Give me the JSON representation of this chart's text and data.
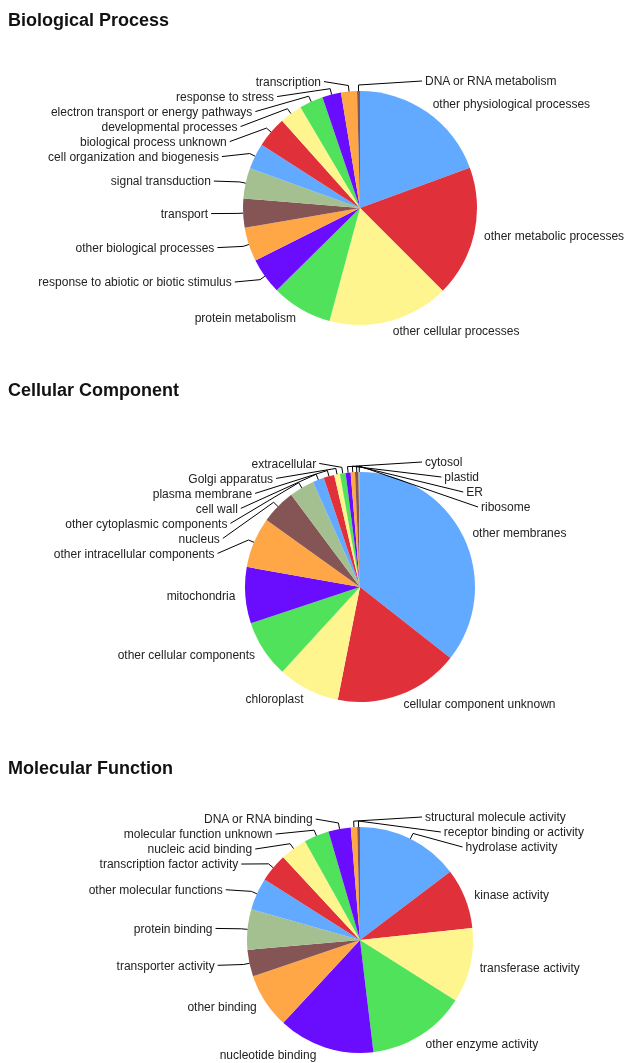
{
  "chart_data": [
    {
      "type": "pie",
      "title": "Biological Process",
      "categories": [
        "other physiological processes",
        "other metabolic processes",
        "other cellular processes",
        "protein metabolism",
        "response to abiotic or biotic stimulus",
        "other biological processes",
        "transport",
        "signal transduction",
        "cell organization and biogenesis",
        "biological process unknown",
        "developmental processes",
        "electron transport or energy pathways",
        "response to stress",
        "transcription",
        "DNA or RNA metabolism"
      ],
      "values": [
        19.4,
        18.1,
        16.7,
        8.4,
        5.0,
        4.7,
        4.0,
        4.2,
        3.6,
        4.3,
        3.1,
        3.3,
        2.6,
        2.2,
        0.4
      ],
      "colors": [
        "#62aaff",
        "#e0303a",
        "#fff58f",
        "#50e25a",
        "#6a0dff",
        "#ffa646",
        "#855555",
        "#a4bf90",
        "#62aaff",
        "#e0303a",
        "#fff58f",
        "#50e25a",
        "#6a0dff",
        "#ffa646",
        "#855555"
      ]
    },
    {
      "type": "pie",
      "title": "Cellular Component",
      "categories": [
        "other membranes",
        "cellular component unknown",
        "chloroplast",
        "other cellular components",
        "mitochondria",
        "other intracellular components",
        "nucleus",
        "other cytoplasmic components",
        "cell wall",
        "plasma membrane",
        "Golgi apparatus",
        "extracellular",
        "cytosol",
        "plastid",
        "ER",
        "ribosome"
      ],
      "values": [
        35.6,
        17.5,
        8.7,
        8.1,
        7.9,
        7.1,
        4.9,
        3.5,
        1.6,
        1.5,
        0.8,
        0.8,
        0.7,
        0.6,
        0.5,
        0.2
      ],
      "colors": [
        "#62aaff",
        "#e0303a",
        "#fff58f",
        "#50e25a",
        "#6a0dff",
        "#ffa646",
        "#855555",
        "#a4bf90",
        "#62aaff",
        "#e0303a",
        "#fff58f",
        "#50e25a",
        "#6a0dff",
        "#ffa646",
        "#855555",
        "#a4bf90"
      ]
    },
    {
      "type": "pie",
      "title": "Molecular Function",
      "categories": [
        "hydrolase activity",
        "kinase activity",
        "transferase activity",
        "other enzyme activity",
        "nucleotide binding",
        "other binding",
        "transporter activity",
        "protein binding",
        "other molecular functions",
        "transcription factor activity",
        "nucleic acid binding",
        "molecular function unknown",
        "DNA or RNA binding",
        "structural molecule activity",
        "receptor binding or activity"
      ],
      "values": [
        14.7,
        8.6,
        10.7,
        14.1,
        13.8,
        7.9,
        3.8,
        5.8,
        4.6,
        4.1,
        3.8,
        3.6,
        3.2,
        0.9,
        0.4
      ],
      "colors": [
        "#62aaff",
        "#e0303a",
        "#fff58f",
        "#50e25a",
        "#6a0dff",
        "#ffa646",
        "#855555",
        "#a4bf90",
        "#62aaff",
        "#e0303a",
        "#fff58f",
        "#50e25a",
        "#6a0dff",
        "#ffa646",
        "#855555"
      ]
    }
  ]
}
